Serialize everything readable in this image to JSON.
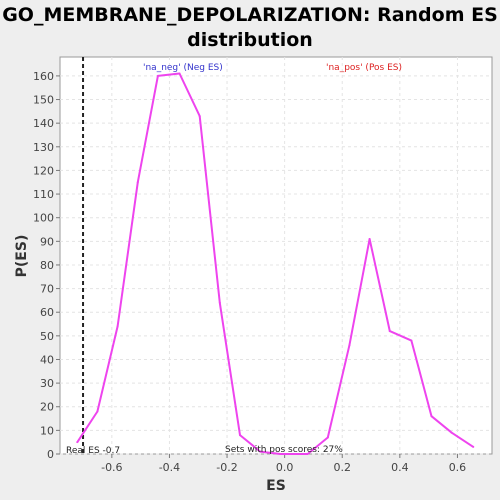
{
  "chart_data": {
    "type": "line",
    "title_line1": "GO_MEMBRANE_DEPOLARIZATION: Random ES",
    "title_line2": "distribution",
    "xlabel": "ES",
    "ylabel": "P(ES)",
    "xlim": [
      -0.78,
      0.72
    ],
    "ylim": [
      0,
      168
    ],
    "xticks": [
      -0.6,
      -0.4,
      -0.2,
      0.0,
      0.2,
      0.4,
      0.6
    ],
    "xtick_labels": [
      "-0.6",
      "-0.4",
      "-0.2",
      "0.0",
      "0.2",
      "0.4",
      "0.6"
    ],
    "yticks": [
      0,
      10,
      20,
      30,
      40,
      50,
      60,
      70,
      80,
      90,
      100,
      110,
      120,
      130,
      140,
      150,
      160
    ],
    "grid": true,
    "series": [
      {
        "name": "'na_neg' (Neg ES)",
        "color": "#ee44ee",
        "x": [
          -0.72,
          -0.65,
          -0.58,
          -0.51,
          -0.44,
          -0.365,
          -0.295,
          -0.225,
          -0.155,
          -0.085,
          -0.015,
          0.08,
          0.15,
          0.225,
          0.295,
          0.365,
          0.44,
          0.51,
          0.58,
          0.655
        ],
        "y": [
          5,
          18,
          54,
          115,
          160,
          161,
          143,
          64,
          8,
          1,
          0,
          0,
          7,
          46,
          91,
          52,
          48,
          16,
          9,
          3
        ]
      }
    ],
    "legend": [
      {
        "label": "'na_neg' (Neg ES)",
        "color": "#3333cc"
      },
      {
        "label": "'na_pos' (Pos ES)",
        "color": "#dd2222"
      }
    ],
    "real_es": -0.7,
    "real_es_label": "Real ES -0.7",
    "annotation": "Sets with pos scores: 27%"
  }
}
